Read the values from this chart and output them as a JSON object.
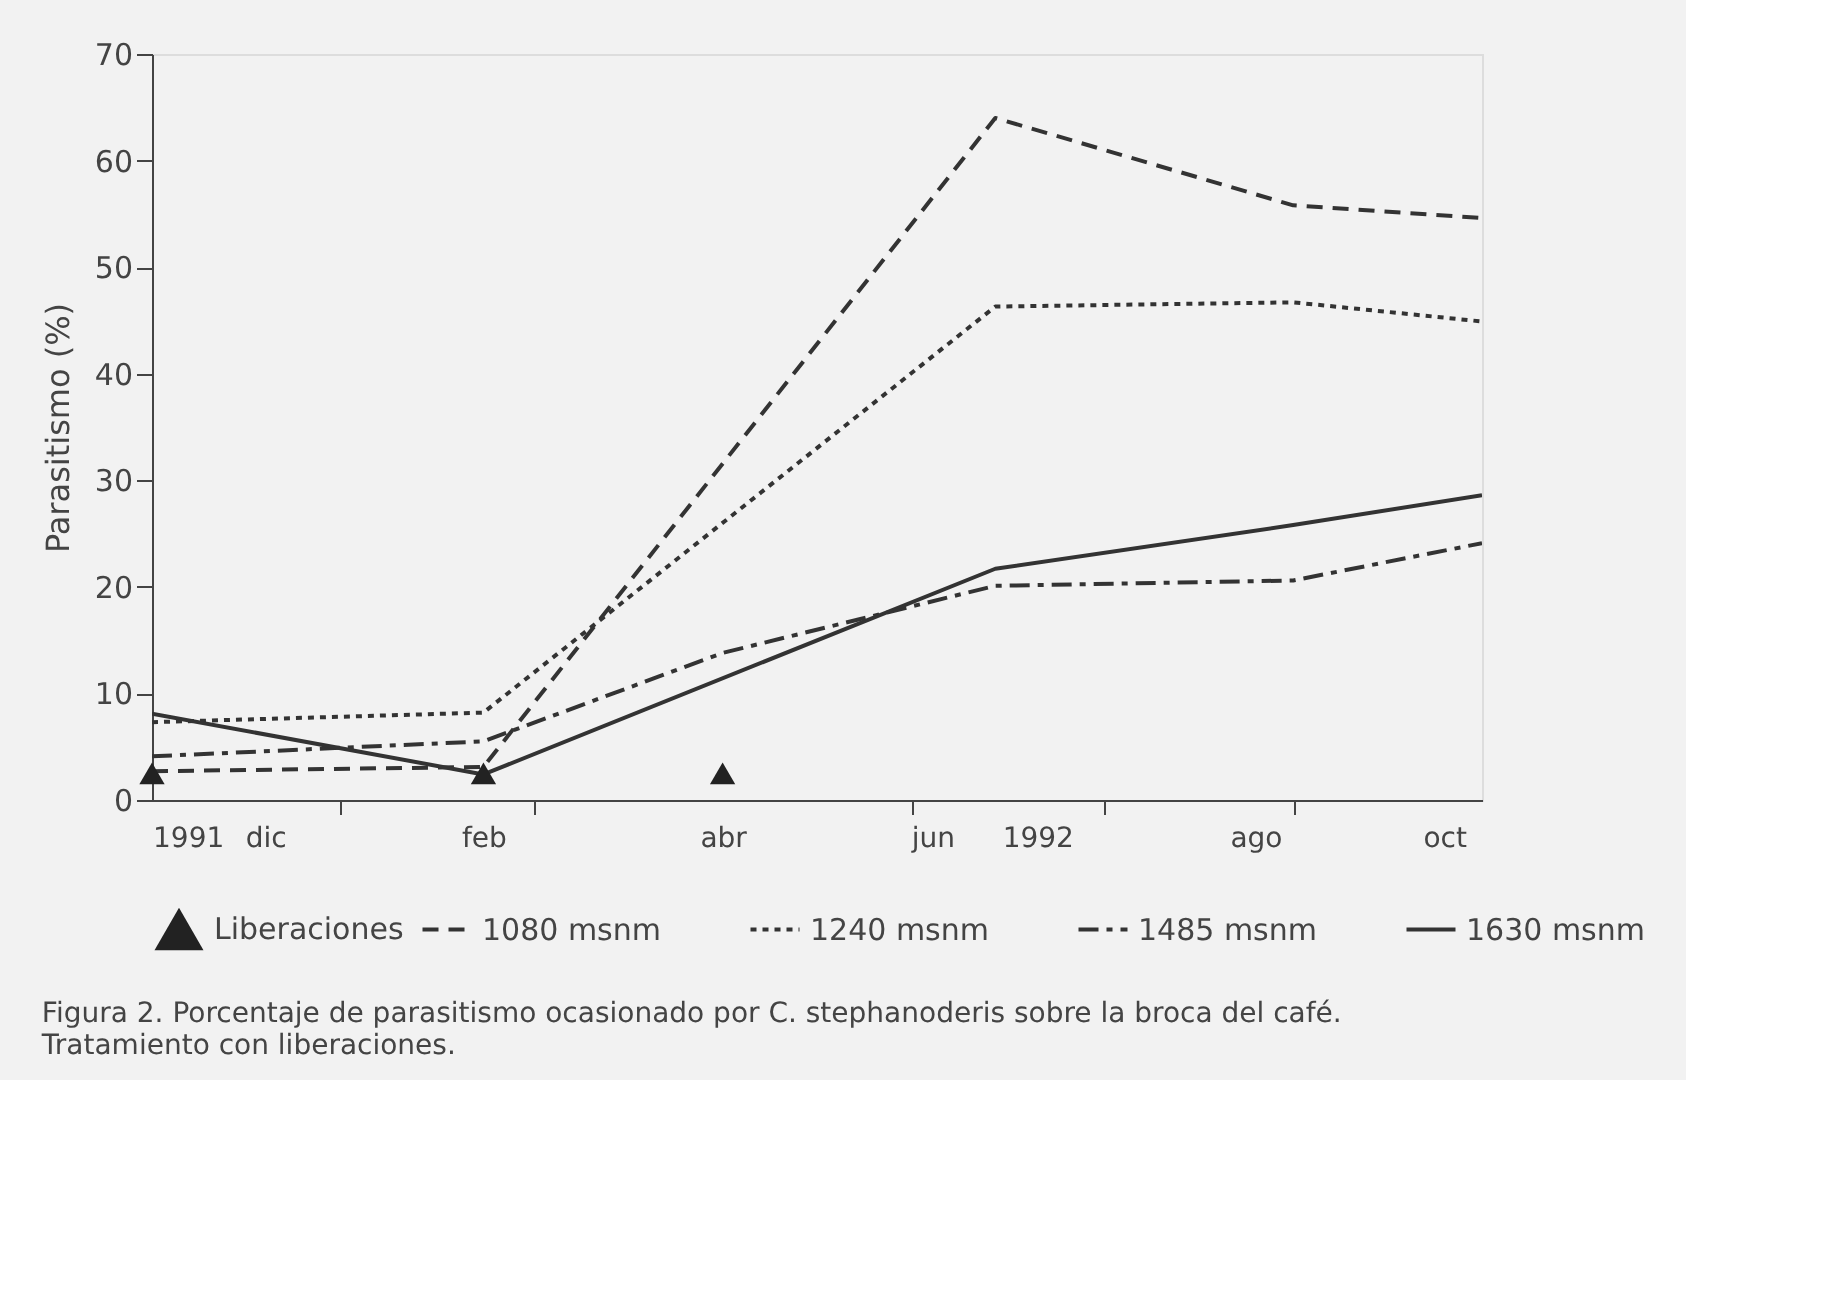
{
  "chart_data": {
    "type": "line",
    "ylabel": "Parasitismo (%)",
    "xlim": [
      "1991-11-28",
      "1992-10-10"
    ],
    "ylim": [
      0,
      70
    ],
    "yticks": [
      0,
      10,
      20,
      30,
      40,
      50,
      60,
      70
    ],
    "xticks": [
      {
        "value": "1991-11-28",
        "label": "1991"
      },
      {
        "value": "1991-12-25",
        "label": "dic"
      },
      {
        "value": "1992-01-12",
        "label": null
      },
      {
        "value": "1992-02-15",
        "label": "feb"
      },
      {
        "value": "1992-02-27",
        "label": null
      },
      {
        "value": "1992-04-12",
        "label": "abr"
      },
      {
        "value": "1992-05-27",
        "label": null
      },
      {
        "value": "1992-06-01",
        "label": "jun"
      },
      {
        "value": "1992-06-26",
        "label": "1992"
      },
      {
        "value": "1992-07-12",
        "label": null
      },
      {
        "value": "1992-08-17",
        "label": "ago"
      },
      {
        "value": "1992-08-26",
        "label": null
      },
      {
        "value": "1992-10-01",
        "label": "oct"
      }
    ],
    "grid": false,
    "legend": "bottom",
    "series": [
      {
        "name": "1080 msnm",
        "color": "#333333",
        "line_style": "dashed",
        "x": [
          "1991-11-28",
          "1992-02-15",
          "1992-06-16",
          "1992-08-26",
          "1992-10-10"
        ],
        "values": [
          2.7,
          3.1,
          64.0,
          55.8,
          54.6
        ]
      },
      {
        "name": "1240 msnm",
        "color": "#333333",
        "line_style": "dotted",
        "x": [
          "1991-11-28",
          "1992-02-15",
          "1992-06-16",
          "1992-08-26",
          "1992-10-10"
        ],
        "values": [
          7.3,
          8.2,
          46.3,
          46.7,
          44.9
        ]
      },
      {
        "name": "1485 msnm",
        "color": "#333333",
        "line_style": "dashdot",
        "x": [
          "1991-11-28",
          "1992-02-15",
          "1992-04-12",
          "1992-06-16",
          "1992-08-26",
          "1992-10-10"
        ],
        "values": [
          4.1,
          5.5,
          13.8,
          20.1,
          20.6,
          24.1
        ]
      },
      {
        "name": "1630 msnm",
        "color": "#333333",
        "line_style": "solid",
        "x": [
          "1991-11-28",
          "1992-02-15",
          "1992-06-16",
          "1992-08-26",
          "1992-10-10"
        ],
        "values": [
          8.1,
          2.4,
          21.7,
          25.8,
          28.6
        ]
      },
      {
        "name": "Liberaciones",
        "type": "scatter",
        "marker": "triangle",
        "color": "#222222",
        "x": [
          "1991-11-28",
          "1992-02-15",
          "1992-04-12"
        ],
        "values": [
          2.5,
          2.5,
          2.5
        ]
      }
    ],
    "annotations": [
      "Figura 2. Porcentaje de parasitismo ocasionado por C. stephanoderis sobre la broca del café. Tratamiento con liberaciones."
    ]
  }
}
